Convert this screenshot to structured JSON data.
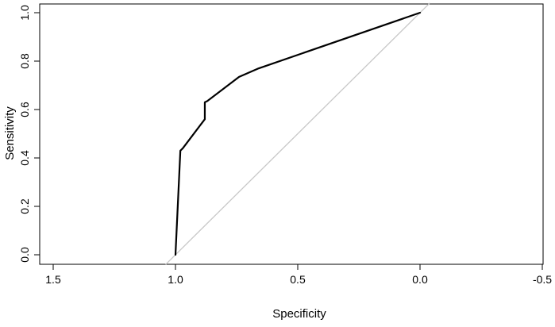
{
  "chart_data": {
    "type": "line",
    "title": "",
    "xlabel": "Specificity",
    "ylabel": "Sensitivity",
    "xlim": [
      1.5,
      -0.5
    ],
    "ylim": [
      0.0,
      1.0
    ],
    "x_reversed": true,
    "x_ticks": [
      1.5,
      1.0,
      0.5,
      0.0,
      -0.5
    ],
    "x_tick_labels": [
      "1.5",
      "1.0",
      "0.5",
      "0.0",
      "-0.5"
    ],
    "y_ticks": [
      0.0,
      0.2,
      0.4,
      0.6,
      0.8,
      1.0
    ],
    "y_tick_labels": [
      "0.0",
      "0.2",
      "0.4",
      "0.6",
      "0.8",
      "1.0"
    ],
    "grid": false,
    "legend": "none",
    "series": [
      {
        "color": "#000000",
        "points": [
          {
            "x": 1.0,
            "y": 0.0
          },
          {
            "x": 0.98,
            "y": 0.43
          },
          {
            "x": 0.97,
            "y": 0.44
          },
          {
            "x": 0.88,
            "y": 0.56
          },
          {
            "x": 0.88,
            "y": 0.63
          },
          {
            "x": 0.87,
            "y": 0.635
          },
          {
            "x": 0.74,
            "y": 0.735
          },
          {
            "x": 0.66,
            "y": 0.77
          },
          {
            "x": 0.0,
            "y": 1.0
          }
        ]
      }
    ],
    "reference_line": {
      "color": "#c8c8c8",
      "points": [
        {
          "x": 1.04,
          "y": -0.04
        },
        {
          "x": -0.04,
          "y": 1.04
        }
      ]
    }
  }
}
